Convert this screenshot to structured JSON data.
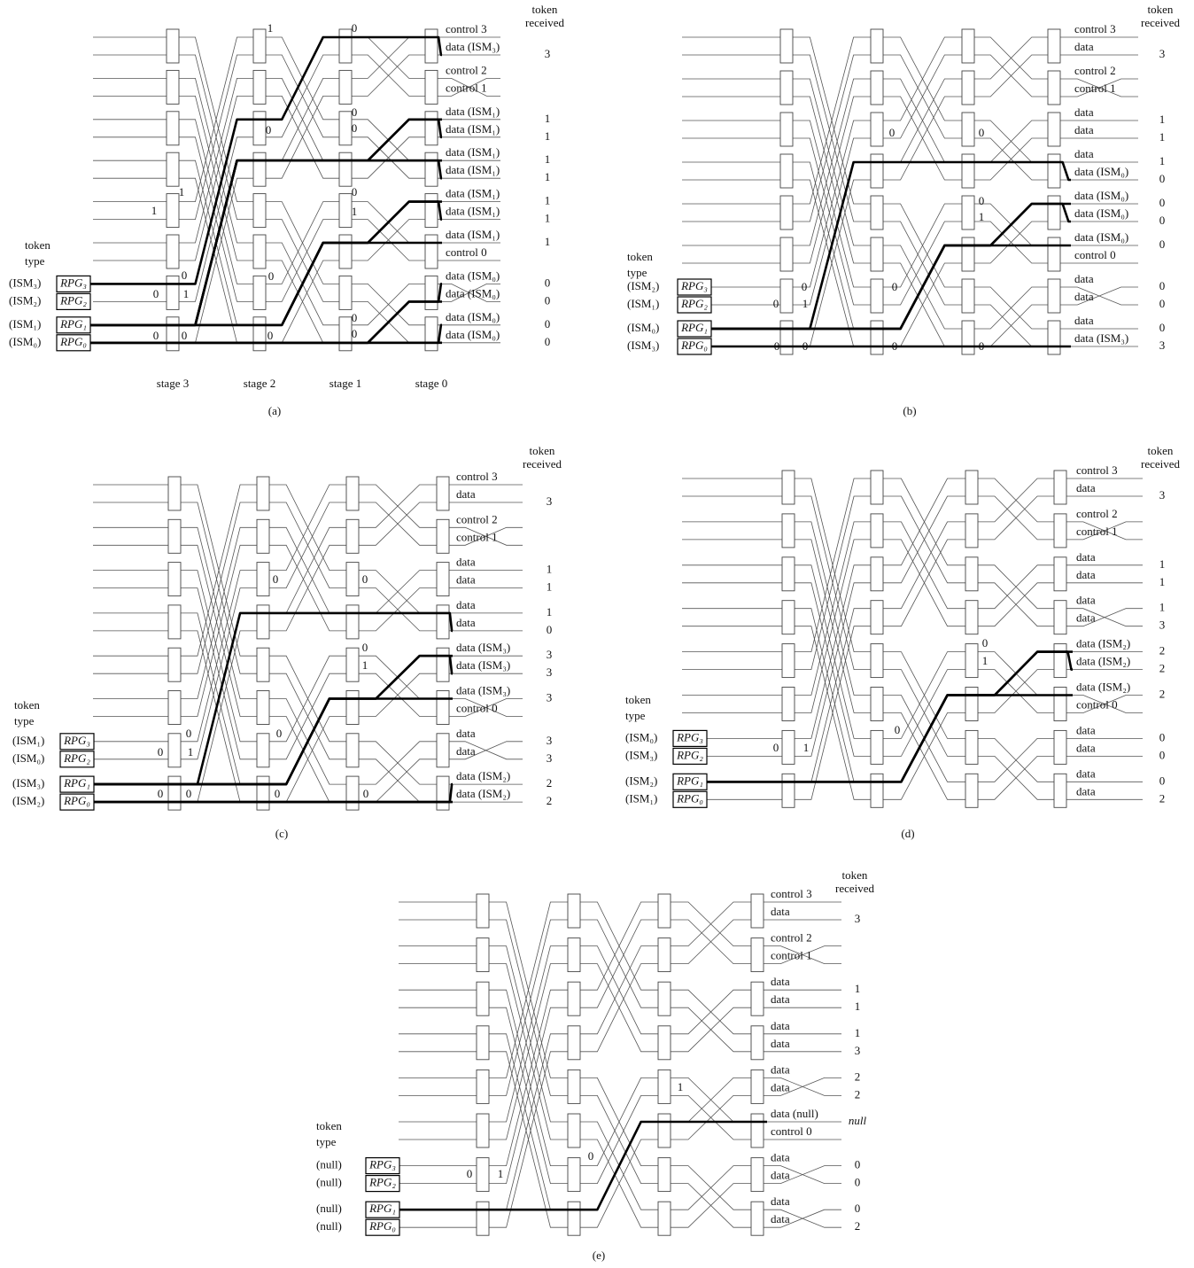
{
  "panels": [
    {
      "caption": "(a)",
      "token_header": [
        "token",
        "received"
      ],
      "token_type": [
        "token",
        "type"
      ],
      "stages": [
        "stage 3",
        "stage 2",
        "stage 1",
        "stage 0"
      ],
      "inputs": [
        {
          "type": "(ISM₃)",
          "rpg": "RPG₃"
        },
        {
          "type": "(ISM₂)",
          "rpg": "RPG₂"
        },
        {
          "type": "(ISM₁)",
          "rpg": "RPG₁"
        },
        {
          "type": "(ISM₀)",
          "rpg": "RPG₀"
        }
      ],
      "outputs": [
        {
          "label": "control 3"
        },
        {
          "label": "data (ISM₃)",
          "token": 3
        },
        {
          "label": "control 2"
        },
        {
          "label": "control 1"
        },
        {
          "label": "data (ISM₁)",
          "token": 1
        },
        {
          "label": "data (ISM₁)",
          "token": 1
        },
        {
          "label": "data (ISM₁)",
          "token": 1
        },
        {
          "label": "data (ISM₁)",
          "token": 1
        },
        {
          "label": "data (ISM₁)",
          "token": 1
        },
        {
          "label": "data (ISM₁)",
          "token": 1
        },
        {
          "label": "data (ISM₁)",
          "token": 1
        },
        {
          "label": "control 0"
        },
        {
          "label": "data (ISM₀)",
          "token": 0
        },
        {
          "label": "data (ISM₀)",
          "token": 0
        },
        {
          "label": "data (ISM₀)",
          "token": 0
        },
        {
          "label": "data (ISM₀)",
          "token": 0
        }
      ],
      "switch_labels": [
        "1",
        "0",
        "0",
        "0",
        "0",
        "1",
        "1",
        "0",
        "1",
        "0",
        "0",
        "1",
        "0",
        "0",
        "0",
        "0",
        "0",
        "0"
      ]
    },
    {
      "caption": "(b)",
      "token_header": [
        "token",
        "received"
      ],
      "token_type": [
        "token",
        "type"
      ],
      "inputs": [
        {
          "type": "(ISM₂)",
          "rpg": "RPG₃"
        },
        {
          "type": "(ISM₁)",
          "rpg": "RPG₂"
        },
        {
          "type": "(ISM₀)",
          "rpg": "RPG₁"
        },
        {
          "type": "(ISM₃)",
          "rpg": "RPG₀"
        }
      ],
      "outputs": [
        {
          "label": "control 3"
        },
        {
          "label": "data",
          "token": 3
        },
        {
          "label": "control 2"
        },
        {
          "label": "control 1"
        },
        {
          "label": "data",
          "token": 1
        },
        {
          "label": "data",
          "token": 1
        },
        {
          "label": "data",
          "token": 1
        },
        {
          "label": "data (ISM₀)",
          "token": 0
        },
        {
          "label": "data (ISM₀)",
          "token": 0
        },
        {
          "label": "data (ISM₀)",
          "token": 0
        },
        {
          "label": "data (ISM₀)",
          "token": 0
        },
        {
          "label": "control 0"
        },
        {
          "label": "data",
          "token": 0
        },
        {
          "label": "data",
          "token": 0
        },
        {
          "label": "data",
          "token": 0
        },
        {
          "label": "data (ISM₃)",
          "token": 3
        }
      ],
      "switch_labels": [
        "0",
        "0",
        "0",
        "1",
        "0",
        "0",
        "1",
        "0",
        "0",
        "0",
        "0",
        "0"
      ]
    },
    {
      "caption": "(c)",
      "token_header": [
        "token",
        "received"
      ],
      "token_type": [
        "token",
        "type"
      ],
      "inputs": [
        {
          "type": "(ISM₁)",
          "rpg": "RPG₃"
        },
        {
          "type": "(ISM₀)",
          "rpg": "RPG₂"
        },
        {
          "type": "(ISM₃)",
          "rpg": "RPG₁"
        },
        {
          "type": "(ISM₂)",
          "rpg": "RPG₀"
        }
      ],
      "outputs": [
        {
          "label": "control 3"
        },
        {
          "label": "data",
          "token": 3
        },
        {
          "label": "control 2"
        },
        {
          "label": "control 1"
        },
        {
          "label": "data",
          "token": 1
        },
        {
          "label": "data",
          "token": 1
        },
        {
          "label": "data",
          "token": 1
        },
        {
          "label": "data",
          "token": 0
        },
        {
          "label": "data (ISM₃)",
          "token": 3
        },
        {
          "label": "data (ISM₃)",
          "token": 3
        },
        {
          "label": "data (ISM₃)",
          "token": 3
        },
        {
          "label": "control 0"
        },
        {
          "label": "data",
          "token": 3
        },
        {
          "label": "data",
          "token": 3
        },
        {
          "label": "data (ISM₂)",
          "token": 2
        },
        {
          "label": "data (ISM₂)",
          "token": 2
        }
      ],
      "switch_labels": [
        "0",
        "0",
        "0",
        "1",
        "0",
        "0",
        "1",
        "0",
        "0",
        "0",
        "0",
        "0"
      ]
    },
    {
      "caption": "(d)",
      "token_header": [
        "token",
        "received"
      ],
      "token_type": [
        "token",
        "type"
      ],
      "inputs": [
        {
          "type": "(ISM₀)",
          "rpg": "RPG₃"
        },
        {
          "type": "(ISM₃)",
          "rpg": "RPG₂"
        },
        {
          "type": "(ISM₂)",
          "rpg": "RPG₁"
        },
        {
          "type": "(ISM₁)",
          "rpg": "RPG₀"
        }
      ],
      "outputs": [
        {
          "label": "control 3"
        },
        {
          "label": "data",
          "token": 3
        },
        {
          "label": "control 2"
        },
        {
          "label": "control 1"
        },
        {
          "label": "data",
          "token": 1
        },
        {
          "label": "data",
          "token": 1
        },
        {
          "label": "data",
          "token": 1
        },
        {
          "label": "data",
          "token": 3
        },
        {
          "label": "data (ISM₂)",
          "token": 2
        },
        {
          "label": "data (ISM₂)",
          "token": 2
        },
        {
          "label": "data (ISM₂)",
          "token": 2
        },
        {
          "label": "control 0"
        },
        {
          "label": "data",
          "token": 0
        },
        {
          "label": "data",
          "token": 0
        },
        {
          "label": "data",
          "token": 0
        },
        {
          "label": "data",
          "token": 2
        }
      ],
      "switch_labels": [
        "0",
        "1",
        "0",
        "0",
        "1"
      ]
    },
    {
      "caption": "(e)",
      "token_header": [
        "token",
        "received"
      ],
      "token_type": [
        "token",
        "type"
      ],
      "inputs": [
        {
          "type": "(null)",
          "rpg": "RPG₃"
        },
        {
          "type": "(null)",
          "rpg": "RPG₂"
        },
        {
          "type": "(null)",
          "rpg": "RPG₁"
        },
        {
          "type": "(null)",
          "rpg": "RPG₀"
        }
      ],
      "outputs": [
        {
          "label": "control 3"
        },
        {
          "label": "data",
          "token": 3
        },
        {
          "label": "control 2"
        },
        {
          "label": "control 1"
        },
        {
          "label": "data",
          "token": 1
        },
        {
          "label": "data",
          "token": 1
        },
        {
          "label": "data",
          "token": 1
        },
        {
          "label": "data",
          "token": 3
        },
        {
          "label": "data",
          "token": 2
        },
        {
          "label": "data",
          "token": 2
        },
        {
          "label": "data (null)",
          "token": "null"
        },
        {
          "label": "control 0"
        },
        {
          "label": "data",
          "token": 0
        },
        {
          "label": "data",
          "token": 0
        },
        {
          "label": "data",
          "token": 0
        },
        {
          "label": "data",
          "token": 2
        }
      ],
      "switch_labels": [
        "1",
        "0",
        "0",
        "1"
      ]
    }
  ]
}
